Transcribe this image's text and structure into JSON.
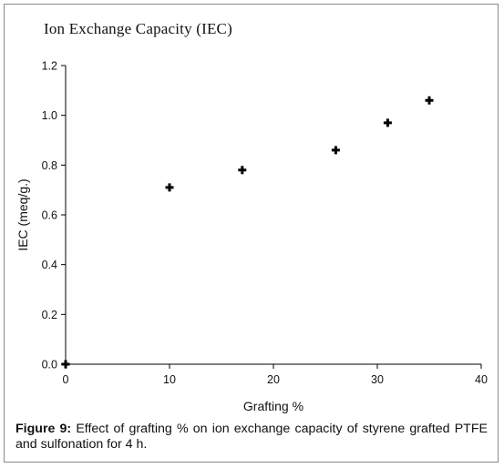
{
  "figure": {
    "label": "Figure 9:",
    "caption": "Effect of grafting % on ion exchange capacity of styrene grafted PTFE and sulfonation for 4 h."
  },
  "chart_data": {
    "type": "scatter",
    "title": "Ion Exchange Capacity (IEC)",
    "xlabel": "Grafting %",
    "ylabel": "IEC (meq/g.)",
    "xlim": [
      0,
      40
    ],
    "ylim": [
      0.0,
      1.2
    ],
    "xticks": [
      0,
      10,
      20,
      30,
      40
    ],
    "xtick_labels": [
      "0",
      "10",
      "20",
      "30",
      "40"
    ],
    "yticks": [
      0.0,
      0.2,
      0.4,
      0.6,
      0.8,
      1.0,
      1.2
    ],
    "ytick_labels": [
      "0.0",
      "0.2",
      "0.4",
      "0.6",
      "0.8",
      "1.0",
      "1.2"
    ],
    "grid": false,
    "legend": "none",
    "marker": "plus",
    "marker_color": "#000000",
    "series": [
      {
        "x": [
          0,
          10,
          17,
          26,
          31,
          35
        ],
        "y": [
          0.0,
          0.71,
          0.78,
          0.86,
          0.97,
          1.06
        ]
      }
    ]
  }
}
